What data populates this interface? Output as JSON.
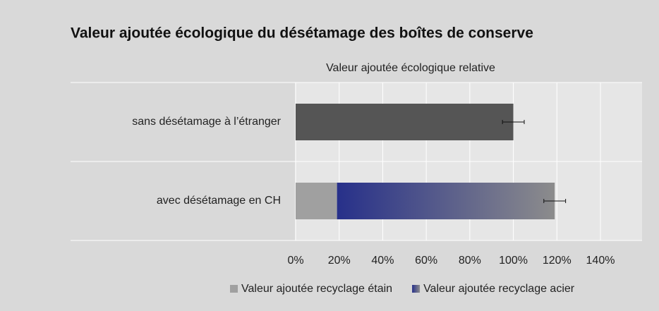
{
  "chart_data": {
    "type": "stacked-bar-horizontal",
    "title": "Valeur ajoutée écologique du désétamage des boîtes de conserve",
    "x_label": "Valeur ajoutée écologique relative",
    "categories": [
      "sans désétamage à l’étranger",
      "avec désétamage en CH"
    ],
    "series": [
      {
        "color": "#555555",
        "values": [
          100,
          null
        ],
        "errors": [
          5,
          null
        ]
      },
      {
        "name": "Valeur ajoutée recyclage étain",
        "color": "#a0a0a0",
        "values": [
          null,
          19
        ],
        "errors": [
          null,
          null
        ]
      },
      {
        "name": "Valeur ajoutée recyclage acier",
        "color": "#27308a",
        "color_end": "#8c8c8c",
        "values": [
          null,
          100
        ],
        "errors": [
          null,
          5
        ]
      }
    ],
    "xlim": [
      0,
      140
    ],
    "xticks": [
      {
        "value": 0,
        "label": "0%"
      },
      {
        "value": 20,
        "label": "20%"
      },
      {
        "value": 40,
        "label": "40%"
      },
      {
        "value": 60,
        "label": "60%"
      },
      {
        "value": 80,
        "label": "80%"
      },
      {
        "value": 100,
        "label": "100%"
      },
      {
        "value": 120,
        "label": "120%"
      },
      {
        "value": 140,
        "label": "140%"
      }
    ],
    "grid": true,
    "legend": "bottom"
  }
}
